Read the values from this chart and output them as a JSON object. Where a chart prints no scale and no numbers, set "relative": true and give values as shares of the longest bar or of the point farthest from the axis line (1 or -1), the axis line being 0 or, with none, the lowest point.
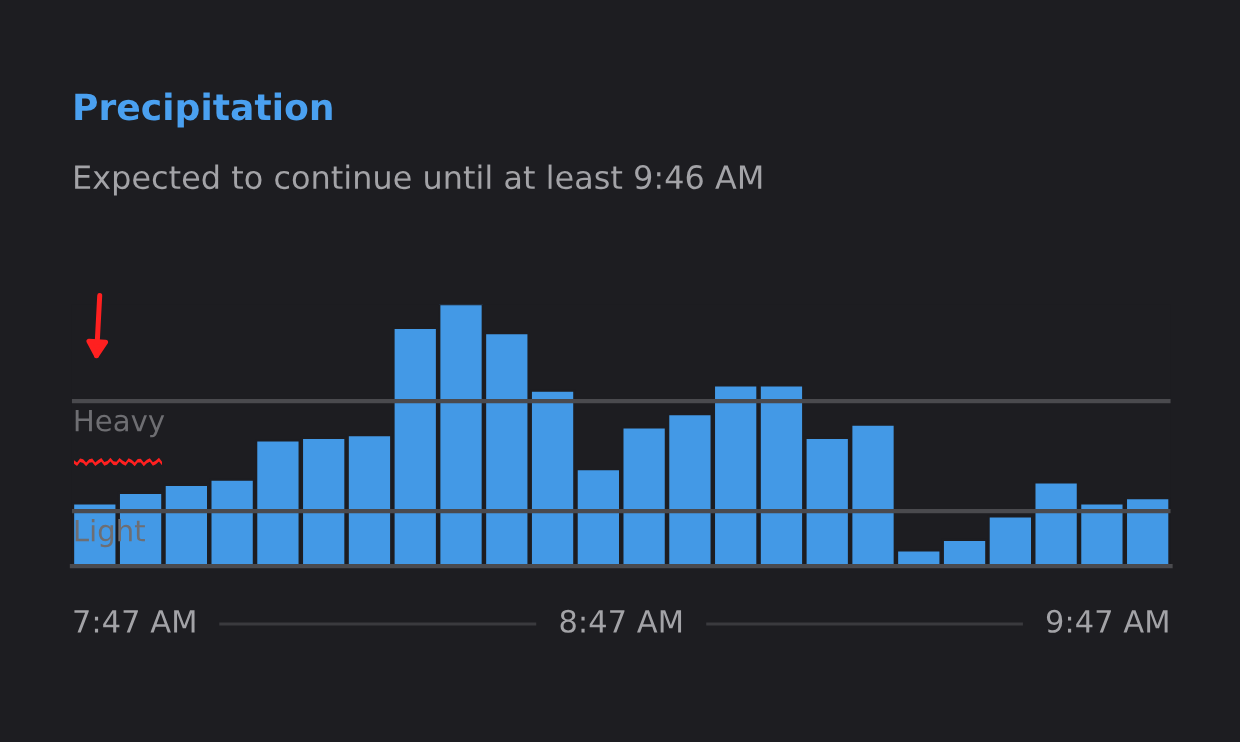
{
  "chart_data": {
    "type": "bar",
    "title": "Precipitation",
    "subtitle": "Expected to continue until at least 9:46 AM",
    "relative": true,
    "categories": [
      null,
      null,
      null,
      null,
      null,
      null,
      null,
      null,
      null,
      null,
      null,
      null,
      null,
      null,
      null,
      null,
      null,
      null,
      null,
      null,
      null,
      null,
      null,
      null
    ],
    "values": [
      0.24,
      0.28,
      0.31,
      0.33,
      0.48,
      0.49,
      0.5,
      0.91,
      1,
      0.89,
      0.67,
      0.37,
      0.53,
      0.58,
      0.69,
      0.69,
      0.49,
      0.54,
      0.06,
      0.1,
      0.19,
      0.32,
      0.24,
      0.26
    ],
    "color": "#4399e6",
    "ref_lines": [
      {
        "axis": "y",
        "value": 0.63,
        "label": "Heavy",
        "color": "#4a4a4e"
      },
      {
        "axis": "y",
        "value": 0.21,
        "label": "Light",
        "color": "#4a4a4e"
      }
    ],
    "annotations": [
      "7:47 AM",
      "8:47 AM",
      "9:47 AM"
    ],
    "grid": false
  }
}
